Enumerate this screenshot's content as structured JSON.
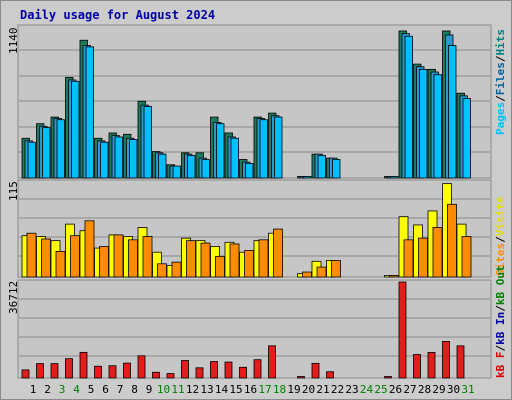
{
  "chart_data": {
    "type": "bar",
    "title": "Daily usage for August 2024",
    "categories": [
      "1",
      "2",
      "3",
      "4",
      "5",
      "6",
      "7",
      "8",
      "9",
      "10",
      "11",
      "12",
      "13",
      "14",
      "15",
      "16",
      "17",
      "18",
      "19",
      "20",
      "21",
      "22",
      "23",
      "24",
      "25",
      "26",
      "27",
      "28",
      "29",
      "30",
      "31"
    ],
    "weekend_days": [
      "3",
      "4",
      "10",
      "11",
      "17",
      "18",
      "24",
      "25",
      "31"
    ],
    "panels": [
      {
        "id": "top",
        "ytick": "1140",
        "ymax": 1140,
        "legend": [
          "Pages",
          "/",
          "Files",
          "/",
          "Hits"
        ],
        "series": [
          {
            "name": "Hits",
            "color": "#1e7a5e",
            "values": [
              300,
              410,
              460,
              760,
              1040,
              300,
              340,
              330,
              580,
              200,
              100,
              190,
              190,
              460,
              340,
              140,
              460,
              490,
              0,
              10,
              180,
              150,
              0,
              0,
              0,
              10,
              1110,
              860,
              820,
              1110,
              640
            ]
          },
          {
            "name": "Files",
            "color": "#2a9ad0",
            "values": [
              280,
              390,
              450,
              740,
              1000,
              280,
              320,
              300,
              550,
              190,
              90,
              180,
              150,
              420,
              310,
              120,
              450,
              470,
              0,
              10,
              180,
              150,
              0,
              0,
              0,
              10,
              1090,
              840,
              800,
              1080,
              620
            ]
          },
          {
            "name": "Pages",
            "color": "#00bfff",
            "values": [
              270,
              380,
              440,
              730,
              990,
              270,
              310,
              290,
              540,
              180,
              90,
              170,
              140,
              410,
              300,
              110,
              440,
              460,
              0,
              10,
              170,
              140,
              0,
              0,
              0,
              10,
              1070,
              820,
              780,
              1000,
              600
            ]
          }
        ]
      },
      {
        "id": "mid",
        "ytick": "115",
        "ymax": 115,
        "legend": [
          "Visits",
          "/",
          "Sites"
        ],
        "series": [
          {
            "name": "Visits",
            "color": "#ffff00",
            "values": [
              50,
              49,
              44,
              64,
              56,
              35,
              51,
              49,
              60,
              30,
              14,
              47,
              44,
              37,
              42,
              30,
              44,
              53,
              0,
              4,
              19,
              20,
              0,
              0,
              0,
              1,
              73,
              63,
              80,
              113,
              64
            ]
          },
          {
            "name": "Sites",
            "color": "#ff8c00",
            "values": [
              53,
              46,
              31,
              50,
              68,
              37,
              51,
              45,
              49,
              16,
              18,
              44,
              41,
              25,
              40,
              32,
              45,
              58,
              0,
              6,
              12,
              20,
              0,
              0,
              0,
              1,
              45,
              47,
              60,
              88,
              49
            ]
          }
        ]
      },
      {
        "id": "bot",
        "ytick": "36712",
        "ymax": 36712,
        "legend": [
          "kB F",
          "/",
          "kB In",
          "/",
          "kB Out"
        ],
        "series": [
          {
            "name": "kB F",
            "color": "#e31c1c",
            "values": [
              3100,
              5500,
              5500,
              7400,
              9800,
              4500,
              4700,
              5700,
              8500,
              2200,
              1700,
              6700,
              3900,
              6300,
              6100,
              4100,
              7000,
              12300,
              0,
              200,
              5600,
              2400,
              0,
              0,
              0,
              200,
              36700,
              9000,
              9800,
              14000,
              12300
            ]
          }
        ]
      }
    ],
    "colors": {
      "plot_bg": "#cccccc",
      "grid": "#8a8a8a",
      "title": "#0000aa",
      "weekday_label": "#000000",
      "weekend_label": "#008000",
      "pages": "#00bfff",
      "files": "#0060a0",
      "hits": "#008080",
      "visits": "#e0e000",
      "sites": "#ff8c00",
      "kbf": "#e00000",
      "kbin": "#0000aa",
      "kbout": "#008000",
      "slash": "#000000"
    }
  }
}
